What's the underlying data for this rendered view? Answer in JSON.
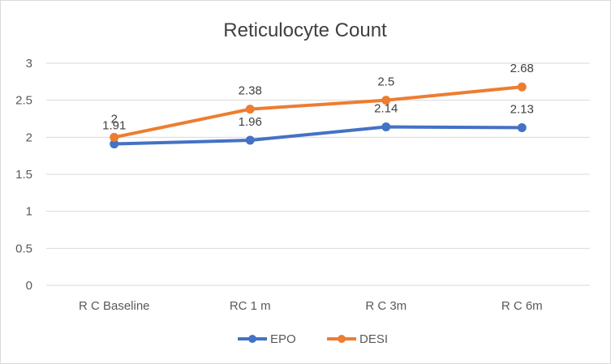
{
  "chart_data": {
    "type": "line",
    "title": "Reticulocyte Count",
    "categories": [
      "R C Baseline",
      "RC 1 m",
      "R C 3m",
      "R C 6m"
    ],
    "series": [
      {
        "name": "EPO",
        "values": [
          1.91,
          1.96,
          2.14,
          2.13
        ],
        "color": "#4472c4"
      },
      {
        "name": "DESI",
        "values": [
          2,
          2.38,
          2.5,
          2.68
        ],
        "color": "#ed7d31"
      }
    ],
    "yticks": [
      "0",
      "0.5",
      "1",
      "1.5",
      "2",
      "2.5",
      "3"
    ],
    "ylim": [
      0,
      3
    ],
    "grid": true,
    "legend_position": "bottom"
  }
}
